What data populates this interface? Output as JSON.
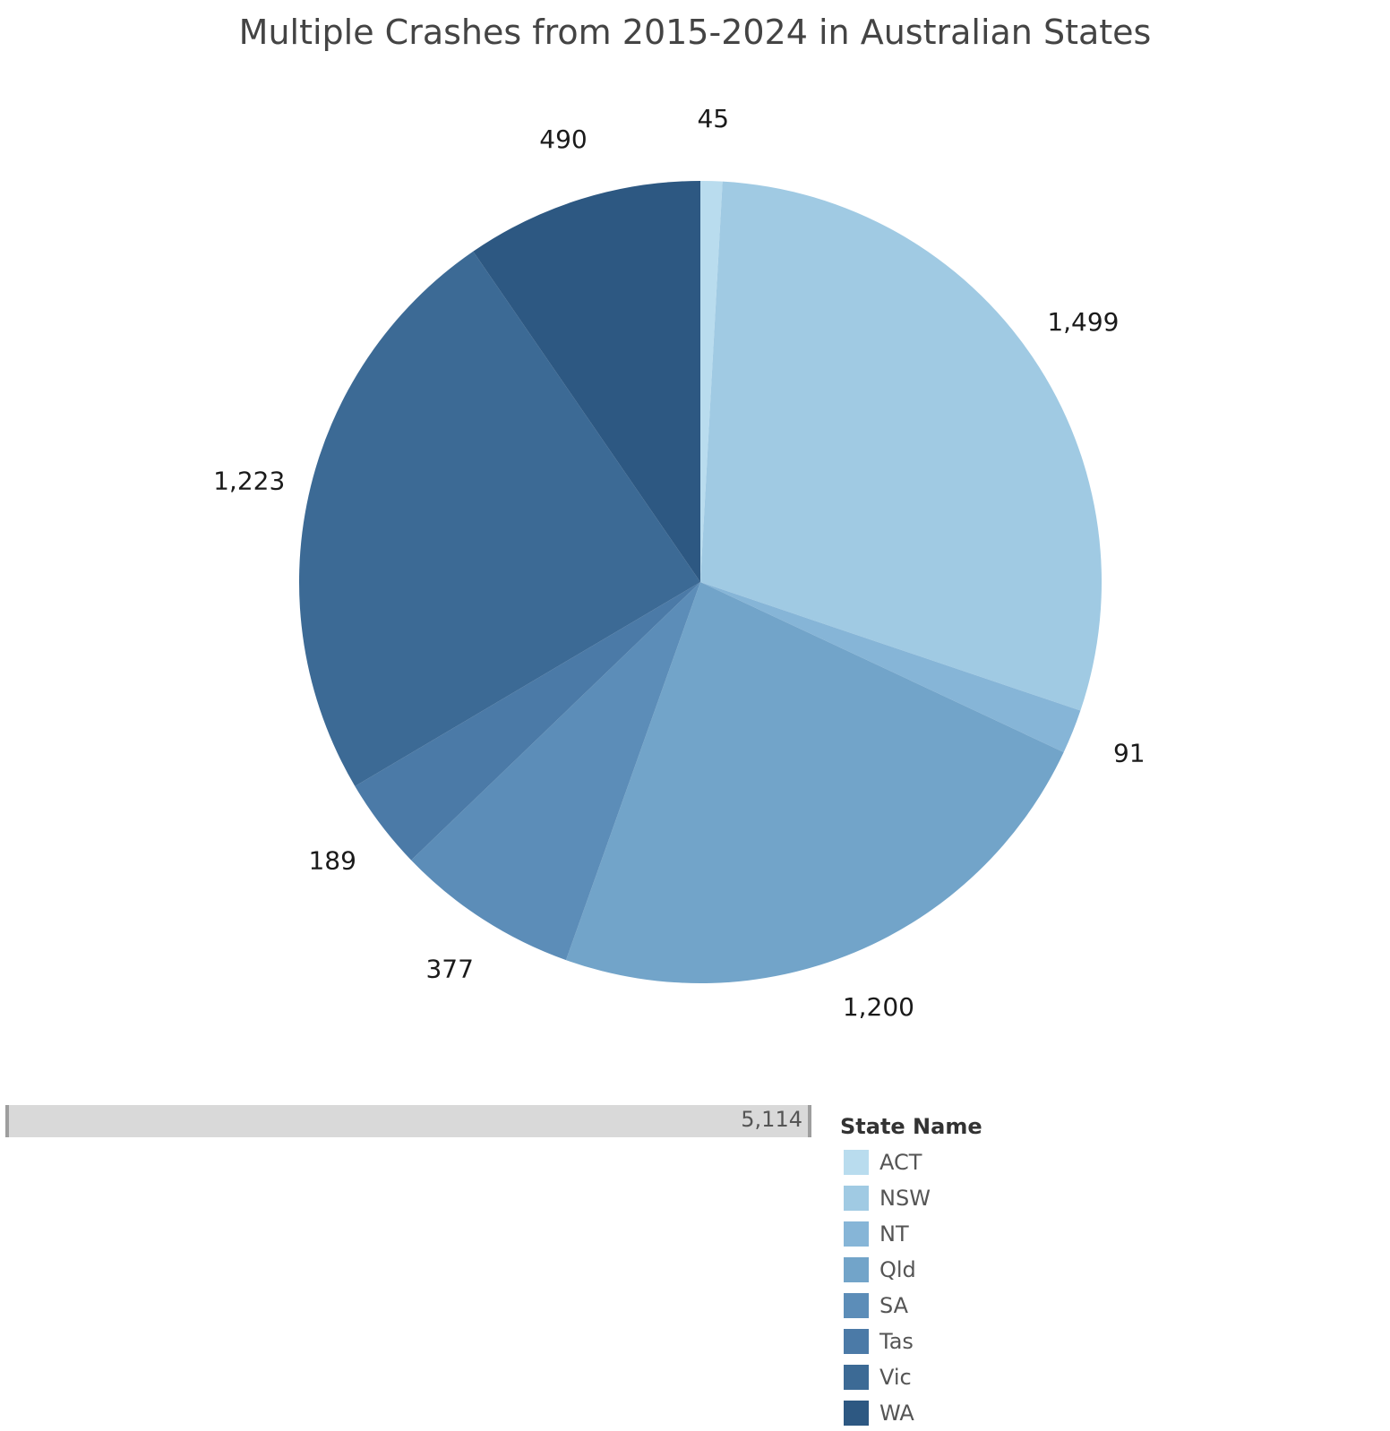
{
  "title": "Multiple Crashes from 2015-2024 in Australian States",
  "chart_data": {
    "type": "pie",
    "title": "Multiple Crashes from 2015-2024 in Australian States",
    "legend_title": "State Name",
    "legend_position": "bottom-right",
    "start": "top",
    "direction": "clockwise",
    "slices": [
      {
        "label": "ACT",
        "value": 45,
        "value_label": "45",
        "color": "#b9dcee"
      },
      {
        "label": "NSW",
        "value": 1499,
        "value_label": "1,499",
        "color": "#a0cae3"
      },
      {
        "label": "NT",
        "value": 91,
        "value_label": "91",
        "color": "#86b5d7"
      },
      {
        "label": "Qld",
        "value": 1200,
        "value_label": "1,200",
        "color": "#72a4c9"
      },
      {
        "label": "SA",
        "value": 377,
        "value_label": "377",
        "color": "#5c8db8"
      },
      {
        "label": "Tas",
        "value": 189,
        "value_label": "189",
        "color": "#4b7aa7"
      },
      {
        "label": "Vic",
        "value": 1223,
        "value_label": "1,223",
        "color": "#3c6a95"
      },
      {
        "label": "WA",
        "value": 490,
        "value_label": "490",
        "color": "#2d5882"
      }
    ],
    "total": 5114,
    "total_label": "5,114"
  }
}
